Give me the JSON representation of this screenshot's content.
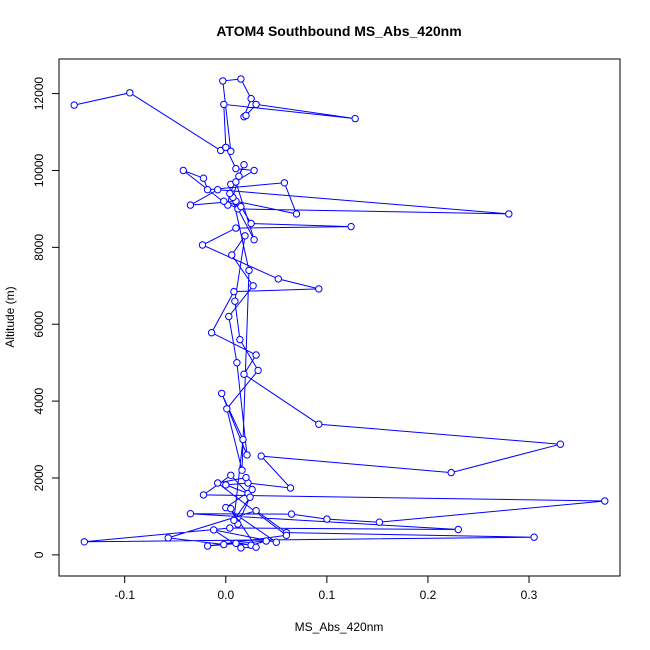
{
  "chart_data": {
    "type": "line",
    "title": "ATOM4 Southbound MS_Abs_420nm",
    "xlabel": "MS_Abs_420nm",
    "ylabel": "Altitude (m)",
    "xlim": [
      -0.165,
      0.39
    ],
    "ylim": [
      -550,
      12900
    ],
    "x_ticks": [
      -0.1,
      0.0,
      0.1,
      0.2,
      0.3
    ],
    "x_tick_labels": [
      "-0.1",
      "0.0",
      "0.1",
      "0.2",
      "0.3"
    ],
    "y_ticks": [
      0,
      2000,
      4000,
      6000,
      8000,
      10000,
      12000
    ],
    "y_tick_labels": [
      "0",
      "2000",
      "4000",
      "6000",
      "8000",
      "10000",
      "12000"
    ],
    "series": [
      {
        "color": "#0000ff",
        "marker": "open-circle",
        "x": [
          -0.15,
          -0.095,
          -0.005,
          0.0,
          0.005,
          -0.003,
          0.015,
          0.025,
          0.018,
          0.02,
          0.03,
          0.128,
          -0.002,
          0.0,
          0.01,
          0.028,
          0.005,
          0.002,
          -0.042,
          -0.022,
          -0.018,
          0.058,
          0.07,
          0.01,
          -0.035,
          -0.008,
          0.28,
          0.012,
          -0.002,
          0.015,
          0.025,
          0.124,
          0.01,
          -0.023,
          0.052,
          0.092,
          0.008,
          -0.014,
          0.03,
          0.018,
          0.092,
          0.331,
          0.223,
          0.035,
          0.064,
          0.022,
          0.0,
          0.022,
          0.005,
          -0.022,
          0.375,
          0.152,
          0.1,
          0.065,
          -0.035,
          0.23,
          0.004,
          -0.14,
          0.305,
          0.06,
          0.03,
          -0.057,
          -0.002,
          0.01,
          0.025,
          0.04,
          -0.018,
          0.06,
          -0.008,
          0.02,
          0.026,
          0.0,
          0.05,
          -0.012,
          0.015,
          0.03,
          0.005,
          0.012,
          0.024,
          0.008,
          0.017,
          -0.004,
          0.021,
          0.011,
          0.003,
          0.027,
          0.006,
          0.019,
          0.009,
          0.014,
          0.032,
          0.001,
          0.016,
          0.023,
          0.007,
          0.013,
          0.018,
          0.004,
          0.028,
          0.01
        ],
        "y": [
          11700,
          12020,
          10520,
          10600,
          10500,
          12330,
          12380,
          11870,
          11400,
          11430,
          11720,
          11350,
          11720,
          10600,
          10050,
          10000,
          9640,
          9100,
          10000,
          9800,
          9500,
          9680,
          8870,
          9200,
          9100,
          9500,
          8870,
          9000,
          9200,
          9060,
          8620,
          8540,
          8500,
          8060,
          7180,
          6920,
          6850,
          5780,
          5200,
          4700,
          3400,
          2880,
          2140,
          2570,
          1740,
          1870,
          1820,
          1600,
          2070,
          1560,
          1400,
          850,
          930,
          1060,
          1070,
          660,
          700,
          340,
          460,
          580,
          1150,
          440,
          270,
          300,
          250,
          360,
          230,
          510,
          1870,
          2010,
          1700,
          1230,
          330,
          650,
          180,
          200,
          1200,
          800,
          1500,
          900,
          3000,
          4200,
          2600,
          5000,
          6200,
          7000,
          7800,
          8300,
          6600,
          5600,
          4800,
          3800,
          2200,
          7400,
          9300,
          9850,
          10150,
          9400,
          8200,
          9700
        ]
      }
    ]
  }
}
